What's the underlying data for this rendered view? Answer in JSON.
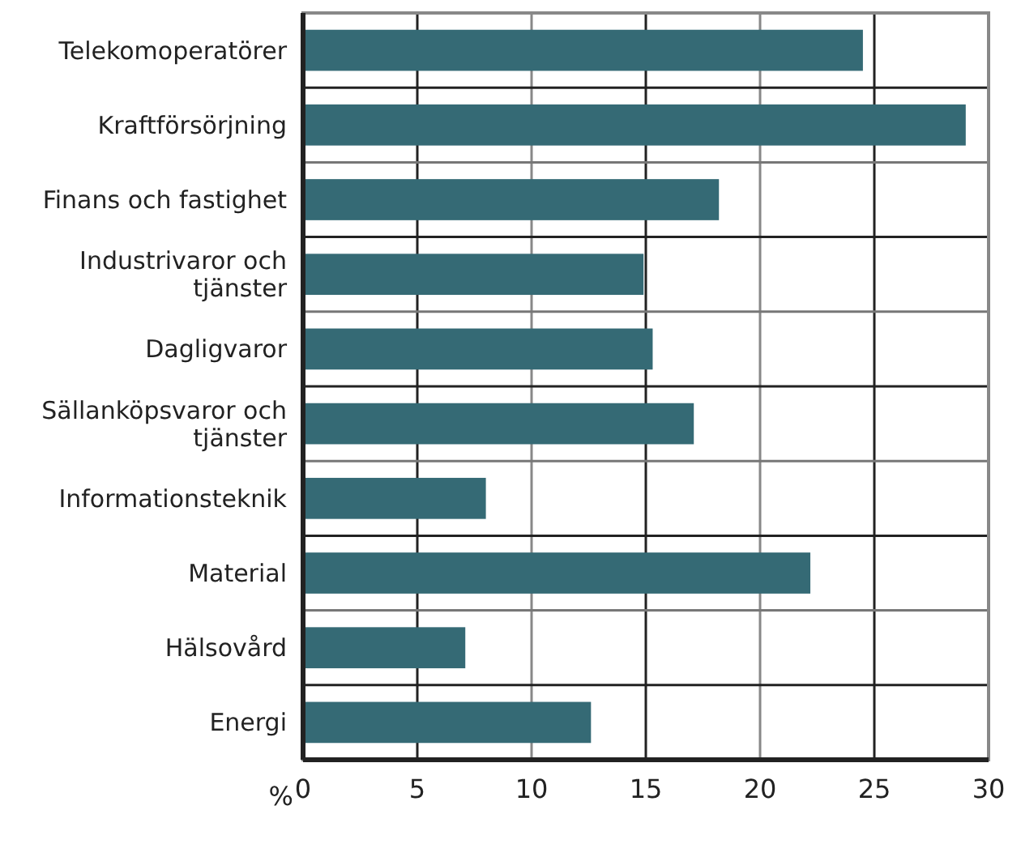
{
  "chart_data": {
    "type": "bar",
    "orientation": "horizontal",
    "xlabel": "%",
    "categories": [
      "Telekomoperatörer",
      "Kraftförsörjning",
      "Finans och fastighet",
      "Industrivaror och tjänster",
      "Dagligvaror",
      "Sällanköpsvaror och tjänster",
      "Informationsteknik",
      "Material",
      "Hälsovård",
      "Energi"
    ],
    "values": [
      24.5,
      29.0,
      18.2,
      14.9,
      15.3,
      17.1,
      8.0,
      22.2,
      7.1,
      12.6
    ],
    "color": "#356a75",
    "xlim": [
      0,
      30
    ],
    "xticks": [
      0,
      5,
      10,
      15,
      20,
      25,
      30
    ],
    "grid": true
  }
}
